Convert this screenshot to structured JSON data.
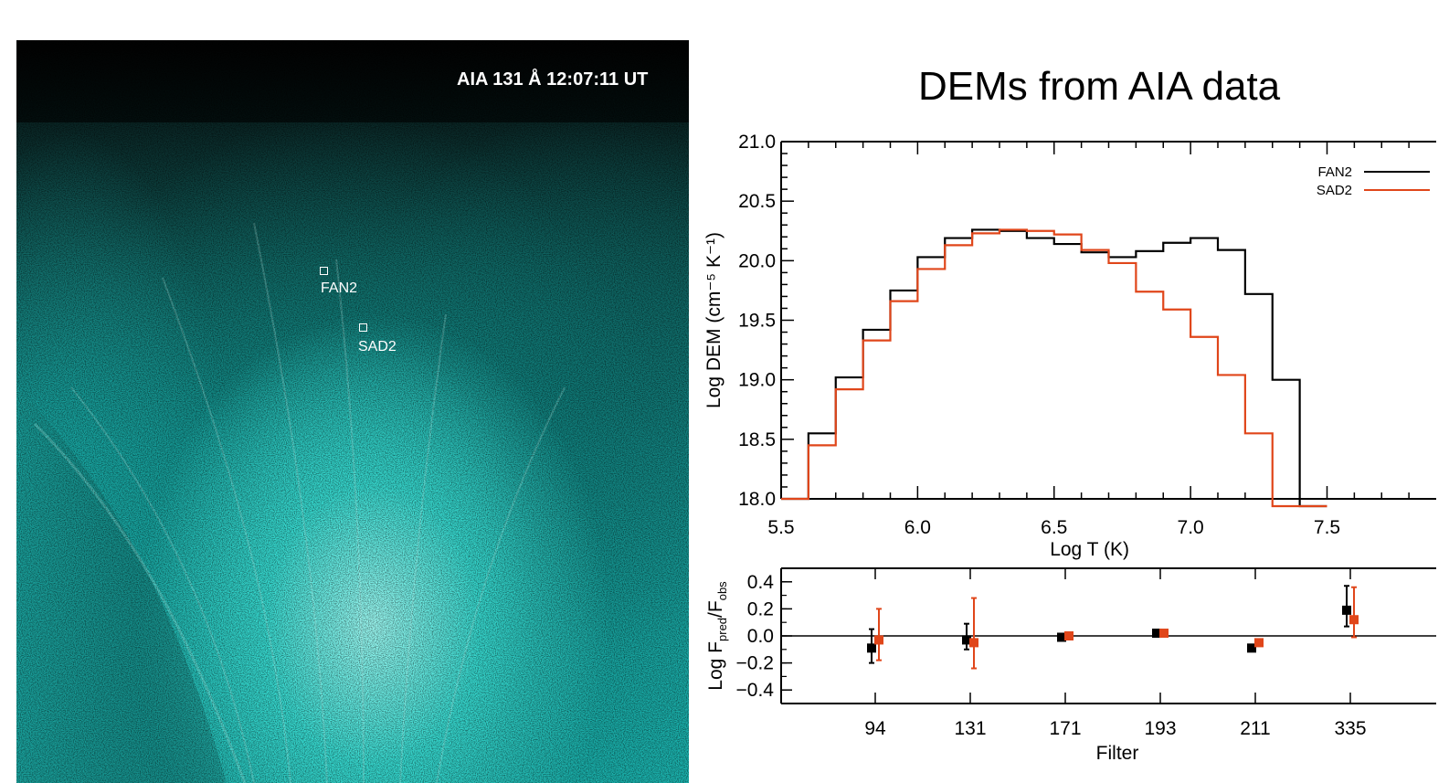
{
  "image_panel": {
    "title": "AIA 131 Å 12:07:11 UT",
    "regions": [
      {
        "label": "FAN2"
      },
      {
        "label": "SAD2"
      }
    ]
  },
  "colors": {
    "fan2": "#000000",
    "sad2": "#e0461a",
    "image_accent": "#2ee0d8"
  },
  "chart_data": [
    {
      "type": "line",
      "title": "DEMs from AIA data",
      "xlabel": "Log T (K)",
      "ylabel": "Log DEM (cm⁻⁵ K⁻¹)",
      "xlim": [
        5.5,
        7.9
      ],
      "ylim": [
        18.0,
        21.0
      ],
      "xticks": [
        "5.5",
        "6.0",
        "6.5",
        "7.0",
        "7.5"
      ],
      "yticks": [
        "18.0",
        "18.5",
        "19.0",
        "19.5",
        "20.0",
        "20.5",
        "21.0"
      ],
      "legend_position": "top-right",
      "step": true,
      "x": [
        5.5,
        5.6,
        5.7,
        5.8,
        5.9,
        6.0,
        6.1,
        6.2,
        6.3,
        6.4,
        6.5,
        6.6,
        6.7,
        6.8,
        6.9,
        7.0,
        7.1,
        7.2,
        7.3,
        7.4
      ],
      "series": [
        {
          "name": "FAN2",
          "color": "#000000",
          "values": [
            18.0,
            18.55,
            19.02,
            19.42,
            19.75,
            20.03,
            20.19,
            20.26,
            20.25,
            20.19,
            20.14,
            20.07,
            20.03,
            20.08,
            20.15,
            20.19,
            20.09,
            19.72,
            19.0,
            17.9
          ]
        },
        {
          "name": "SAD2",
          "color": "#e0461a",
          "values": [
            18.0,
            18.45,
            18.92,
            19.33,
            19.66,
            19.93,
            20.13,
            20.23,
            20.26,
            20.25,
            20.22,
            20.09,
            19.98,
            19.74,
            19.59,
            19.36,
            19.04,
            18.55,
            17.9,
            17.9
          ]
        }
      ]
    },
    {
      "type": "scatter",
      "xlabel": "Filter",
      "ylabel": "Log F_pred/F_obs",
      "ylim": [
        -0.5,
        0.5
      ],
      "yticks": [
        "0.4",
        "0.2",
        "0.0",
        "−0.2",
        "−0.4"
      ],
      "categories": [
        "94",
        "131",
        "171",
        "193",
        "211",
        "335"
      ],
      "series": [
        {
          "name": "FAN2",
          "color": "#000000",
          "values": [
            -0.09,
            -0.03,
            -0.01,
            0.02,
            -0.09,
            0.19
          ],
          "err_low": [
            0.11,
            0.07,
            0.02,
            0.01,
            0.02,
            0.12
          ],
          "err_high": [
            0.14,
            0.12,
            0.02,
            0.01,
            0.02,
            0.18
          ]
        },
        {
          "name": "SAD2",
          "color": "#e0461a",
          "values": [
            -0.03,
            -0.05,
            0.0,
            0.02,
            -0.05,
            0.12
          ],
          "err_low": [
            0.15,
            0.19,
            0.02,
            0.01,
            0.02,
            0.13
          ],
          "err_high": [
            0.23,
            0.33,
            0.02,
            0.01,
            0.02,
            0.24
          ]
        }
      ]
    }
  ]
}
